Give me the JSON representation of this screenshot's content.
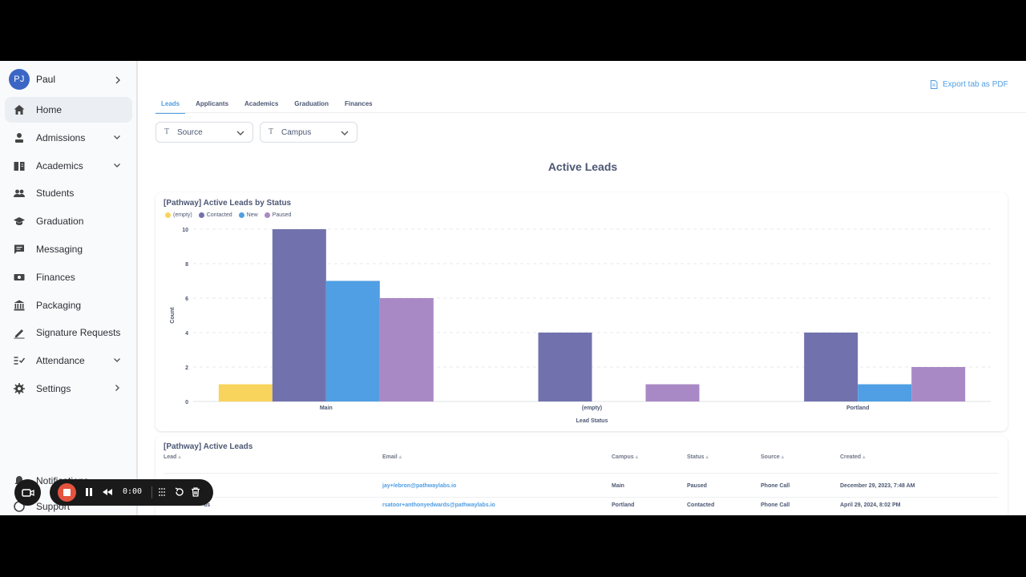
{
  "user": {
    "initials": "PJ",
    "name": "Paul"
  },
  "sidebar": {
    "items": [
      {
        "label": "Home",
        "icon": "home-icon",
        "active": true
      },
      {
        "label": "Admissions",
        "icon": "admissions-icon",
        "expand": "down"
      },
      {
        "label": "Academics",
        "icon": "book-icon",
        "expand": "down"
      },
      {
        "label": "Students",
        "icon": "people-icon"
      },
      {
        "label": "Graduation",
        "icon": "graduation-cap-icon"
      },
      {
        "label": "Messaging",
        "icon": "message-icon"
      },
      {
        "label": "Finances",
        "icon": "money-icon"
      },
      {
        "label": "Packaging",
        "icon": "bank-icon"
      },
      {
        "label": "Signature Requests",
        "icon": "signature-icon"
      },
      {
        "label": "Attendance",
        "icon": "attendance-icon",
        "expand": "down"
      },
      {
        "label": "Settings",
        "icon": "gear-icon",
        "expand": "right"
      }
    ],
    "bottom": {
      "notifications": "Notifications",
      "support": "Support"
    }
  },
  "header": {
    "export_label": "Export tab as PDF"
  },
  "tabs": [
    {
      "label": "Leads",
      "active": true
    },
    {
      "label": "Applicants"
    },
    {
      "label": "Academics"
    },
    {
      "label": "Graduation"
    },
    {
      "label": "Finances"
    }
  ],
  "filters": [
    {
      "label": "Source",
      "icon": "T"
    },
    {
      "label": "Campus",
      "icon": "T"
    }
  ],
  "section_title": "Active Leads",
  "chart_card": {
    "title": "[Pathway] Active Leads by Status"
  },
  "chart_data": {
    "type": "bar",
    "title": "[Pathway] Active Leads by Status",
    "xlabel": "Lead Status",
    "ylabel": "Count",
    "categories": [
      "Main",
      "(empty)",
      "Portland"
    ],
    "series": [
      {
        "name": "(empty)",
        "color": "#f9d45c",
        "values": [
          1,
          0,
          0
        ]
      },
      {
        "name": "Contacted",
        "color": "#7172ad",
        "values": [
          10,
          4,
          4
        ]
      },
      {
        "name": "New",
        "color": "#509ee3",
        "values": [
          7,
          0,
          1
        ]
      },
      {
        "name": "Paused",
        "color": "#a989c5",
        "values": [
          6,
          1,
          2
        ]
      }
    ],
    "yticks": [
      0,
      2,
      4,
      6,
      8,
      10
    ],
    "ylim": [
      0,
      10
    ],
    "grid": true,
    "legend": "top-left"
  },
  "table": {
    "title": "[Pathway] Active Leads",
    "columns": [
      "Lead",
      "Email",
      "Campus",
      "Status",
      "Source",
      "Created"
    ],
    "rows": [
      {
        "lead": "",
        "email": "jay+lebron@pathwaylabs.io",
        "campus": "Main",
        "status": "Paused",
        "source": "Phone Call",
        "created": "December 29, 2023, 7:48 AM"
      },
      {
        "lead": "ds",
        "email": "rsatoor+anthonyedwards@pathwaylabs.io",
        "campus": "Portland",
        "status": "Contacted",
        "source": "Phone Call",
        "created": "April 29, 2024, 8:02 PM"
      }
    ]
  },
  "recorder": {
    "time": "0:00"
  },
  "colors": {
    "accent": "#509ee3",
    "avatar": "#3b66c4",
    "record": "#e4533e"
  }
}
